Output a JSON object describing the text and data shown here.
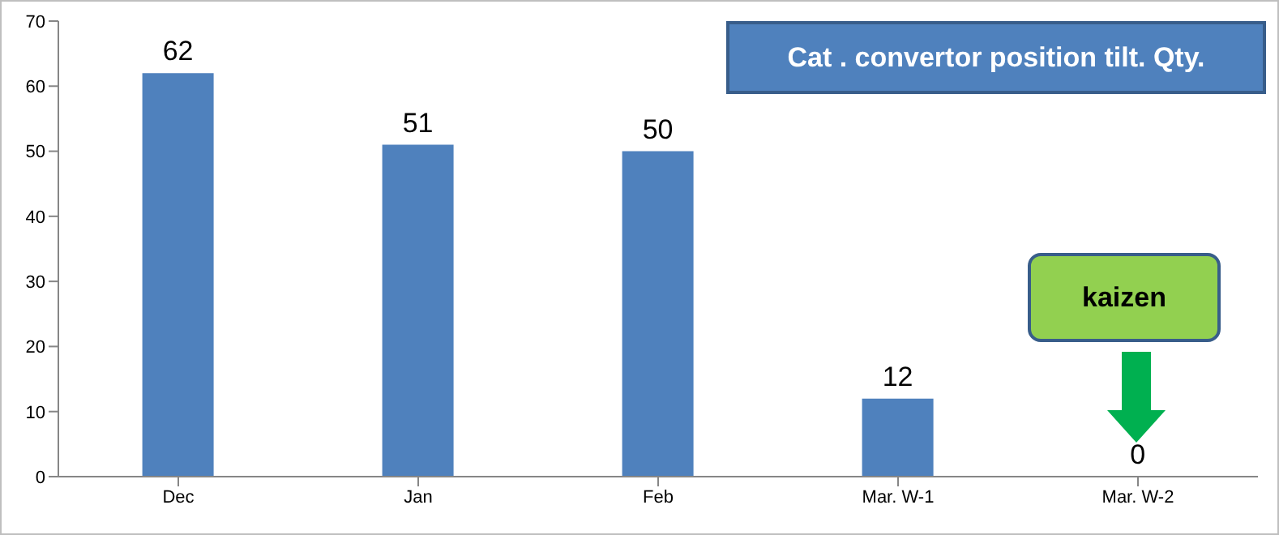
{
  "chart_data": {
    "type": "bar",
    "title": "Cat . convertor position tilt. Qty.",
    "categories": [
      "Dec",
      "Jan",
      "Feb",
      "Mar. W-1",
      "Mar. W-2"
    ],
    "values": [
      62,
      51,
      50,
      12,
      0
    ],
    "color": "#4f81bd",
    "ylim": [
      0,
      70
    ],
    "yticks": [
      0,
      10,
      20,
      30,
      40,
      50,
      60,
      70
    ],
    "grid": false,
    "data_labels": true,
    "annotations": [
      "kaizen"
    ]
  }
}
